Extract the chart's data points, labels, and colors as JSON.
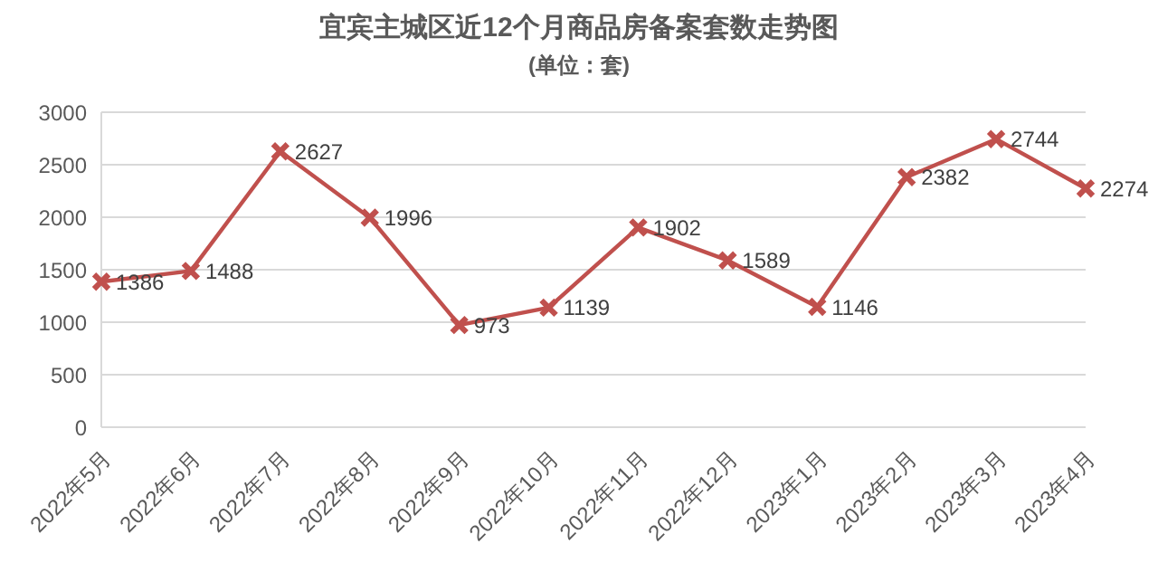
{
  "chart_data": {
    "type": "line",
    "title": "宜宾主城区近12个月商品房备案套数走势图",
    "subtitle": "(单位：套)",
    "categories": [
      "2022年5月",
      "2022年6月",
      "2022年7月",
      "2022年8月",
      "2022年9月",
      "2022年10月",
      "2022年11月",
      "2022年12月",
      "2023年1月",
      "2023年2月",
      "2023年3月",
      "2023年4月"
    ],
    "values": [
      1386,
      1488,
      2627,
      1996,
      973,
      1139,
      1902,
      1589,
      1146,
      2382,
      2744,
      2274
    ],
    "color": "#c0504d",
    "ylim": [
      0,
      3000
    ],
    "yticks": [
      0,
      500,
      1000,
      1500,
      2000,
      2500,
      3000
    ],
    "grid": "y",
    "marker": "cross",
    "line_style": "solid",
    "data_labels": true
  }
}
